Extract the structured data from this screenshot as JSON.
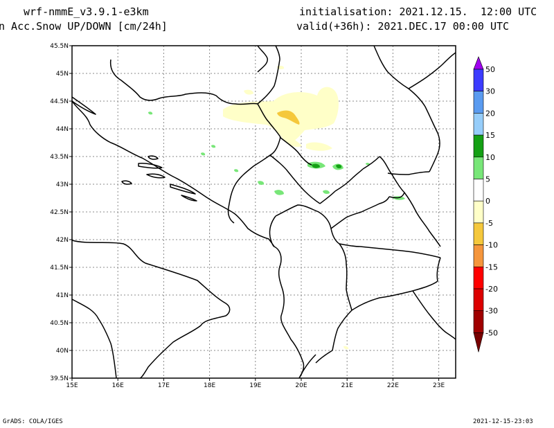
{
  "header": {
    "model": "wrf-nmmE_v3.9.1-e3km",
    "variable": "n Acc.Snow UP/DOWN [cm/24h]",
    "init": "initialisation: 2021.12.15.  12:00 UTC",
    "valid": "valid(+36h): 2021.DEC.17 00:00 UTC"
  },
  "footer": {
    "credit": "GrADS: COLA/IGES",
    "timestamp": "2021-12-15-23:03"
  },
  "map": {
    "lat_labels": [
      "45.5N",
      "45N",
      "44.5N",
      "44N",
      "43.5N",
      "43N",
      "42.5N",
      "42N",
      "41.5N",
      "41N",
      "40.5N",
      "40N",
      "39.5N"
    ],
    "lon_labels": [
      "15E",
      "16E",
      "17E",
      "18E",
      "19E",
      "20E",
      "21E",
      "22E",
      "23E"
    ],
    "grid": true
  },
  "legend": {
    "labels": [
      "50",
      "30",
      "20",
      "15",
      "10",
      "5",
      "0",
      "-5",
      "-10",
      "-15",
      "-20",
      "-30",
      "-50"
    ],
    "colors": [
      "#a000f0",
      "#3c3cff",
      "#5a9bf0",
      "#96cdfa",
      "#14a014",
      "#78e678",
      "#ffffff",
      "#ffffc8",
      "#f5c83c",
      "#f5963c",
      "#ff0000",
      "#dc0000",
      "#a00000",
      "#780000"
    ]
  }
}
